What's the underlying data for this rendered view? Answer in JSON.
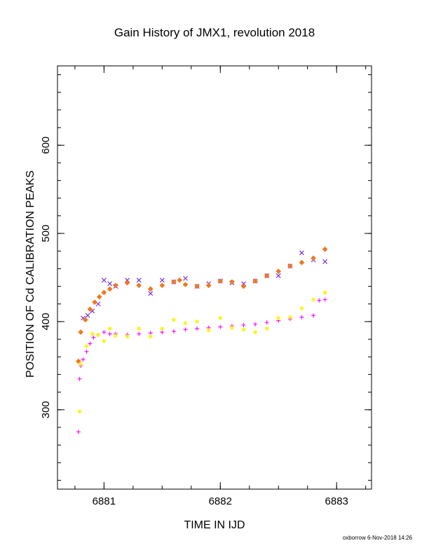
{
  "chart_data": {
    "type": "scatter",
    "title": "Gain History of JMX1, revolution 2018",
    "xlabel": "TIME IN IJD",
    "ylabel": "POSITION OF Cd CALIBRATION PEAKS",
    "xlim": [
      6880.6,
      6883.3
    ],
    "ylim": [
      210,
      690
    ],
    "x_ticks": [
      6881,
      6882,
      6883
    ],
    "y_ticks": [
      300,
      400,
      500,
      600
    ],
    "x_tick_labels": [
      "6881",
      "6882",
      "6883"
    ],
    "y_tick_labels": [
      "300",
      "400",
      "500",
      "600"
    ],
    "grid": false,
    "series": [
      {
        "marker": "x",
        "color": "#7b2fe0",
        "x": [
          6880.82,
          6880.86,
          6880.9,
          6880.95,
          6881.0,
          6881.05,
          6881.1,
          6881.2,
          6881.3,
          6881.4,
          6881.5,
          6881.6,
          6881.7,
          6881.8,
          6881.9,
          6882.0,
          6882.1,
          6882.2,
          6882.3,
          6882.4,
          6882.5,
          6882.6,
          6882.7,
          6882.8,
          6882.9
        ],
        "y": [
          404,
          407,
          412,
          420,
          447,
          443,
          440,
          447,
          447,
          432,
          447,
          445,
          449,
          440,
          443,
          446,
          444,
          443,
          446,
          452,
          452,
          463,
          478,
          470,
          468
        ]
      },
      {
        "marker": "diamond",
        "color": "#f07820",
        "x": [
          6880.78,
          6880.8,
          6880.84,
          6880.88,
          6880.92,
          6880.96,
          6881.0,
          6881.05,
          6881.1,
          6881.2,
          6881.3,
          6881.4,
          6881.5,
          6881.6,
          6881.65,
          6881.7,
          6881.8,
          6881.9,
          6882.0,
          6882.1,
          6882.2,
          6882.3,
          6882.4,
          6882.5,
          6882.6,
          6882.7,
          6882.8,
          6882.9
        ],
        "y": [
          355,
          388,
          402,
          414,
          422,
          428,
          433,
          437,
          441,
          444,
          441,
          437,
          441,
          445,
          447,
          442,
          440,
          441,
          446,
          445,
          440,
          446,
          452,
          457,
          463,
          467,
          472,
          482
        ]
      },
      {
        "marker": "plus",
        "color": "#ff10ff",
        "x": [
          6880.78,
          6880.79,
          6880.8,
          6880.82,
          6880.85,
          6880.88,
          6880.91,
          6880.95,
          6881.0,
          6881.05,
          6881.1,
          6881.2,
          6881.3,
          6881.4,
          6881.5,
          6881.6,
          6881.7,
          6881.8,
          6881.9,
          6882.0,
          6882.1,
          6882.2,
          6882.3,
          6882.4,
          6882.5,
          6882.6,
          6882.7,
          6882.8,
          6882.85,
          6882.9
        ],
        "y": [
          275,
          335,
          350,
          357,
          366,
          375,
          382,
          385,
          388,
          386,
          386,
          385,
          386,
          387,
          388,
          389,
          391,
          392,
          393,
          394,
          395,
          396,
          397,
          399,
          401,
          403,
          405,
          407,
          424,
          425
        ]
      },
      {
        "marker": "star",
        "color": "#f6f61a",
        "x": [
          6880.79,
          6880.8,
          6880.85,
          6880.9,
          6880.95,
          6881.0,
          6881.05,
          6881.1,
          6881.2,
          6881.3,
          6881.4,
          6881.5,
          6881.6,
          6881.7,
          6881.8,
          6881.9,
          6882.0,
          6882.1,
          6882.2,
          6882.3,
          6882.4,
          6882.5,
          6882.6,
          6882.7,
          6882.8,
          6882.9
        ],
        "y": [
          298,
          352,
          372,
          386,
          385,
          378,
          392,
          384,
          383,
          392,
          383,
          392,
          402,
          398,
          400,
          390,
          404,
          393,
          391,
          388,
          392,
          404,
          405,
          415,
          425,
          433
        ]
      }
    ]
  },
  "footer": {
    "credit": "oxborrow  6-Nov-2018 14:26"
  }
}
